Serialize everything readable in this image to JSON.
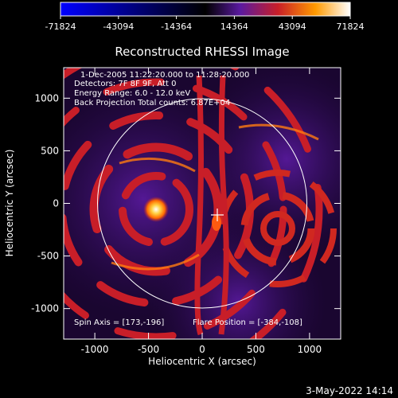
{
  "colorbar": {
    "tick_labels": [
      "-71824",
      "-43094",
      "-14364",
      "14364",
      "43094",
      "71824"
    ],
    "stops": [
      "#0000ff",
      "#000000",
      "#5a1aa0",
      "#c81e28",
      "#ff9a00",
      "#ffffff"
    ]
  },
  "plot": {
    "title": "Reconstructed RHESSI Image",
    "xlabel": "Heliocentric X (arcsec)",
    "ylabel": "Heliocentric Y (arcsec)",
    "x_ticks": [
      "-1000",
      "-500",
      "0",
      "500",
      "1000"
    ],
    "y_ticks": [
      "1000",
      "500",
      "0",
      "-500",
      "-1000"
    ],
    "xlim": [
      -1290,
      1290
    ],
    "ylim": [
      -1290,
      1290
    ],
    "solar_disk_radius": 975
  },
  "info": {
    "line1": "1-Dec-2005 11:22:20.000 to 11:28:20.000",
    "line2": "Detectors: 7F 8F 9F, Att 0",
    "line3": "Energy Range: 6.0 - 12.0 keV",
    "line4": "Back Projection    Total counts: 6.87E+04",
    "spin_axis": "Spin Axis = [173,-196]",
    "flare_position": "Flare Position = [-384,-108]"
  },
  "footer": {
    "date": "3-May-2022 14:14"
  }
}
